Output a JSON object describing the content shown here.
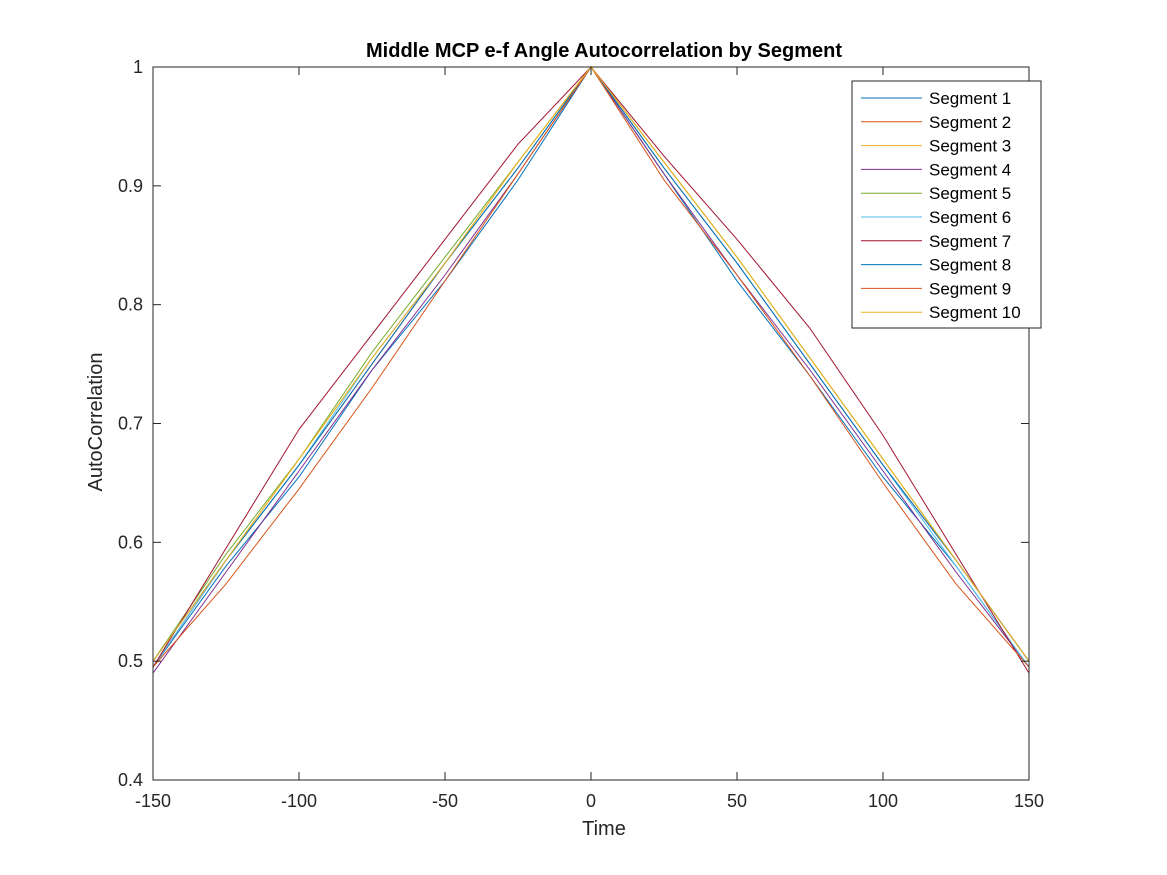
{
  "chart_data": {
    "type": "line",
    "title": "Middle MCP e-f Angle Autocorrelation by Segment",
    "xlabel": "Time",
    "ylabel": "AutoCorrelation",
    "xlim": [
      -150,
      150
    ],
    "ylim": [
      0.4,
      1
    ],
    "xticks": [
      -150,
      -100,
      -50,
      0,
      50,
      100,
      150
    ],
    "xtick_labels": [
      "-150",
      "-100",
      "-50",
      "0",
      "50",
      "100",
      "150"
    ],
    "yticks": [
      0.4,
      0.5,
      0.6,
      0.7,
      0.8,
      0.9,
      1
    ],
    "ytick_labels": [
      "0.4",
      "0.5",
      "0.6",
      "0.7",
      "0.8",
      "0.9",
      "1"
    ],
    "grid": false,
    "legend_position": "top-right",
    "x": [
      -150,
      -125,
      -100,
      -75,
      -50,
      -25,
      0,
      25,
      50,
      75,
      100,
      125,
      150
    ],
    "series": [
      {
        "name": "Segment 1",
        "color": "#0072BD",
        "values": [
          0.495,
          0.58,
          0.655,
          0.745,
          0.82,
          0.905,
          1.0,
          0.91,
          0.82,
          0.74,
          0.655,
          0.58,
          0.495
        ]
      },
      {
        "name": "Segment 2",
        "color": "#D95319",
        "values": [
          0.495,
          0.585,
          0.665,
          0.75,
          0.835,
          0.915,
          1.0,
          0.915,
          0.835,
          0.75,
          0.665,
          0.585,
          0.5
        ]
      },
      {
        "name": "Segment 3",
        "color": "#EDB120",
        "values": [
          0.5,
          0.585,
          0.67,
          0.755,
          0.835,
          0.92,
          1.0,
          0.92,
          0.84,
          0.755,
          0.67,
          0.585,
          0.5
        ]
      },
      {
        "name": "Segment 4",
        "color": "#7E2F8E",
        "values": [
          0.49,
          0.575,
          0.66,
          0.745,
          0.825,
          0.91,
          1.0,
          0.91,
          0.825,
          0.745,
          0.66,
          0.575,
          0.495
        ]
      },
      {
        "name": "Segment 5",
        "color": "#77AC30",
        "values": [
          0.5,
          0.59,
          0.67,
          0.76,
          0.84,
          0.92,
          1.0,
          0.92,
          0.84,
          0.755,
          0.67,
          0.585,
          0.5
        ]
      },
      {
        "name": "Segment 6",
        "color": "#4DBEEE",
        "values": [
          0.495,
          0.585,
          0.665,
          0.755,
          0.835,
          0.915,
          1.0,
          0.915,
          0.835,
          0.75,
          0.665,
          0.58,
          0.495
        ]
      },
      {
        "name": "Segment 7",
        "color": "#A2142F",
        "values": [
          0.495,
          0.595,
          0.695,
          0.775,
          0.855,
          0.935,
          1.0,
          0.925,
          0.855,
          0.78,
          0.69,
          0.59,
          0.49
        ]
      },
      {
        "name": "Segment 8",
        "color": "#0072BD",
        "values": [
          0.5,
          0.585,
          0.665,
          0.75,
          0.835,
          0.915,
          1.0,
          0.915,
          0.835,
          0.75,
          0.665,
          0.585,
          0.5
        ]
      },
      {
        "name": "Segment 9",
        "color": "#D95319",
        "values": [
          0.495,
          0.565,
          0.645,
          0.73,
          0.82,
          0.91,
          1.0,
          0.905,
          0.825,
          0.74,
          0.65,
          0.565,
          0.495
        ]
      },
      {
        "name": "Segment 10",
        "color": "#EDB120",
        "values": [
          0.5,
          0.585,
          0.67,
          0.755,
          0.835,
          0.92,
          1.0,
          0.92,
          0.84,
          0.755,
          0.67,
          0.585,
          0.5
        ]
      }
    ]
  }
}
